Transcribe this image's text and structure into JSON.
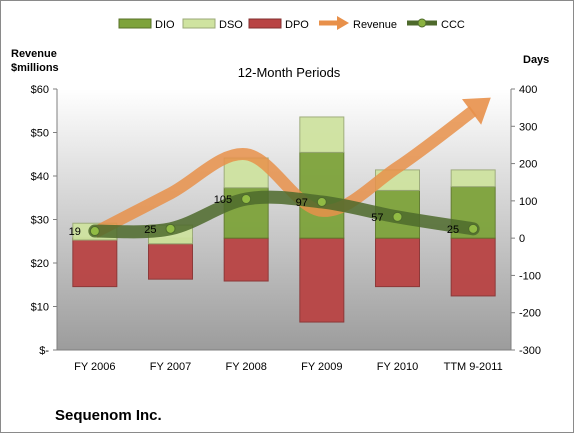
{
  "chart_data": {
    "type": "bar",
    "title": "12-Month Periods",
    "company": "Sequenom Inc.",
    "left_axis": {
      "title_line1": "Revenue",
      "title_line2": "$millions",
      "range": [
        0,
        60
      ],
      "ticks": [
        {
          "value": 0,
          "label": "$-"
        },
        {
          "value": 10,
          "label": "$10"
        },
        {
          "value": 20,
          "label": "$20"
        },
        {
          "value": 30,
          "label": "$30"
        },
        {
          "value": 40,
          "label": "$40"
        },
        {
          "value": 50,
          "label": "$50"
        },
        {
          "value": 60,
          "label": "$60"
        }
      ]
    },
    "right_axis": {
      "title": "Days",
      "range": [
        -300,
        400
      ],
      "ticks": [
        {
          "value": -300,
          "label": "-300"
        },
        {
          "value": -200,
          "label": "-200"
        },
        {
          "value": -100,
          "label": "-100"
        },
        {
          "value": 0,
          "label": "0"
        },
        {
          "value": 100,
          "label": "100"
        },
        {
          "value": 200,
          "label": "200"
        },
        {
          "value": 300,
          "label": "300"
        },
        {
          "value": 400,
          "label": "400"
        }
      ]
    },
    "categories": [
      "FY 2006",
      "FY 2007",
      "FY 2008",
      "FY 2009",
      "FY 2010",
      "TTM 9-2011"
    ],
    "legend": [
      "DIO",
      "DSO",
      "DPO",
      "Revenue",
      "CCC"
    ],
    "legend_position": "top",
    "grid": false,
    "series": [
      {
        "name": "DIO",
        "axis": "days",
        "values": [
          -5,
          -15,
          135,
          230,
          128,
          138
        ]
      },
      {
        "name": "DSO",
        "axis": "days",
        "values": [
          45,
          50,
          80,
          95,
          55,
          45
        ]
      },
      {
        "name": "DPO",
        "axis": "days",
        "values": [
          -130,
          -110,
          -115,
          -225,
          -130,
          -155
        ]
      },
      {
        "name": "Revenue",
        "axis": "revenue",
        "values": [
          27,
          36,
          45,
          32,
          42,
          55
        ]
      },
      {
        "name": "CCC",
        "axis": "days",
        "values": [
          19,
          25,
          105,
          97,
          57,
          25
        ]
      }
    ],
    "ccc_labels": [
      "19",
      "25",
      "105",
      "97",
      "57",
      "25"
    ],
    "colors": {
      "DIO": "#7ea33b",
      "DSO": "#cfe3a0",
      "DPO": "#b94444",
      "Revenue": "#e8904a",
      "CCC": "#4e6a2c",
      "plot_top": "#ffffff",
      "plot_bottom": "#9c9c9c"
    }
  }
}
